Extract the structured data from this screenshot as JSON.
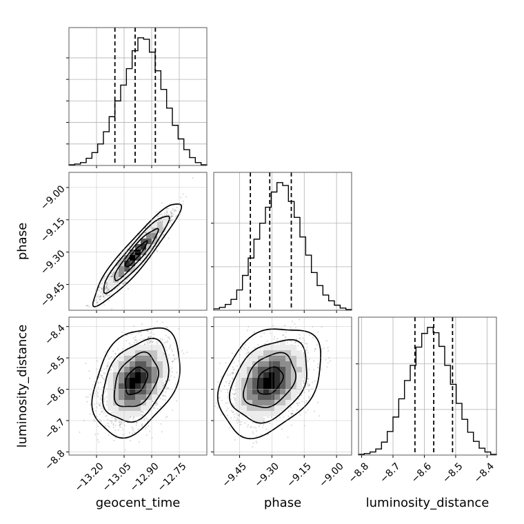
{
  "chart_data": {
    "type": "corner",
    "grid": true,
    "parameters": [
      {
        "name": "geocent_time",
        "label": "geocent_time",
        "range": [
          -13.35,
          -12.6
        ],
        "ticks": [
          -13.2,
          -13.05,
          -12.9,
          -12.75
        ],
        "tick_labels": [
          "−13.20",
          "−13.05",
          "−12.90",
          "−12.75"
        ],
        "quantiles": [
          -13.1,
          -12.99,
          -12.88
        ]
      },
      {
        "name": "phase",
        "label": "phase",
        "range": [
          -9.57,
          -8.93
        ],
        "ticks": [
          -9.45,
          -9.3,
          -9.15,
          -9.0
        ],
        "tick_labels": [
          "−9.45",
          "−9.30",
          "−9.15",
          "−9.00"
        ],
        "quantiles": [
          -9.4,
          -9.31,
          -9.21
        ]
      },
      {
        "name": "luminosity_distance",
        "label": "luminosity_distance",
        "range": [
          -8.81,
          -8.37
        ],
        "ticks": [
          -8.8,
          -8.7,
          -8.6,
          -8.5,
          -8.4
        ],
        "tick_labels": [
          "−8.8",
          "−8.7",
          "−8.6",
          "−8.5",
          "−8.4"
        ],
        "quantiles": [
          -8.63,
          -8.57,
          -8.51
        ]
      }
    ],
    "histograms": [
      {
        "param": "geocent_time",
        "bins": 24,
        "counts": [
          1,
          2,
          4,
          10,
          18,
          30,
          47,
          68,
          90,
          112,
          135,
          160,
          178,
          176,
          158,
          132,
          106,
          80,
          56,
          37,
          22,
          11,
          4,
          1
        ]
      },
      {
        "param": "phase",
        "bins": 24,
        "counts": [
          2,
          4,
          8,
          15,
          28,
          48,
          72,
          98,
          120,
          142,
          163,
          176,
          172,
          150,
          128,
          101,
          76,
          52,
          34,
          21,
          13,
          7,
          3,
          1
        ]
      },
      {
        "param": "luminosity_distance",
        "bins": 24,
        "counts": [
          1,
          2,
          4,
          8,
          17,
          31,
          50,
          74,
          98,
          118,
          142,
          160,
          168,
          161,
          143,
          118,
          93,
          68,
          47,
          30,
          18,
          9,
          4,
          1
        ]
      }
    ],
    "pairs": [
      {
        "x": "geocent_time",
        "y": "phase",
        "center": [
          -12.985,
          -9.31
        ],
        "sd": [
          0.085,
          0.085
        ],
        "correlation": 0.93
      },
      {
        "x": "geocent_time",
        "y": "luminosity_distance",
        "center": [
          -12.985,
          -8.573
        ],
        "sd": [
          0.085,
          0.062
        ],
        "correlation": 0.35
      },
      {
        "x": "phase",
        "y": "luminosity_distance",
        "center": [
          -9.31,
          -8.573
        ],
        "sd": [
          0.085,
          0.062
        ],
        "correlation": 0.33
      }
    ],
    "contour_levels_sigma": [
      0.5,
      1.0,
      1.5,
      2.0
    ]
  }
}
